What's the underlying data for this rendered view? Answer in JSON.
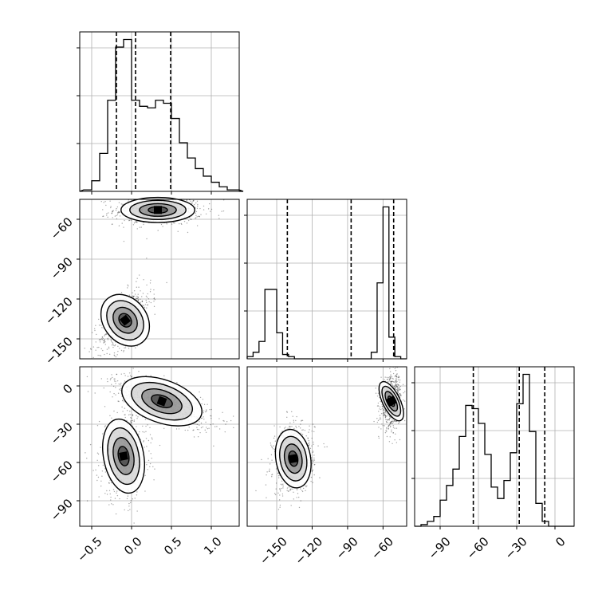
{
  "chart_data": {
    "type": "corner",
    "grid": true,
    "colors": {
      "line": "#000000",
      "grid": "#b0b0b0",
      "density": "#000000"
    },
    "diagonal": [
      {
        "param_index": 0,
        "xlim": [
          -0.65,
          1.35
        ],
        "bin_width": 0.1,
        "bins_start": -0.6,
        "counts": [
          1,
          7,
          25,
          60,
          95,
          100,
          60,
          56,
          55,
          60,
          58,
          48,
          32,
          22,
          15,
          10,
          6,
          3,
          1,
          1,
          0
        ],
        "quantiles": [
          -0.19,
          0.05,
          0.49
        ],
        "x_ticks": [
          -0.5,
          0.0,
          0.5,
          1.0
        ],
        "x_tick_labels": [
          "−0.5",
          "0.0",
          "0.5",
          "1.0"
        ]
      },
      {
        "param_index": 1,
        "xlim": [
          -175,
          -40
        ],
        "bin_width": 5,
        "bins_start": -175,
        "counts": [
          1,
          3,
          8,
          32,
          32,
          12,
          2,
          1,
          0,
          0,
          0,
          0,
          0,
          0,
          0,
          0,
          0,
          0,
          0,
          0,
          0,
          3,
          35,
          70,
          10,
          1,
          0
        ],
        "quantiles": [
          -141,
          -87,
          -51
        ],
        "x_ticks": [
          -150,
          -120,
          -90,
          -60
        ],
        "x_tick_labels": [
          "−150",
          "−120",
          "−90",
          "−60"
        ]
      },
      {
        "param_index": 2,
        "xlim": [
          -110,
          15
        ],
        "bin_width": 5,
        "bins_start": -110,
        "counts": [
          0,
          1,
          3,
          6,
          16,
          25,
          35,
          55,
          74,
          72,
          63,
          44,
          24,
          17,
          28,
          45,
          75,
          93,
          58,
          14,
          3,
          0,
          0
        ],
        "quantiles": [
          -64,
          -28,
          -8
        ],
        "x_ticks": [
          -90,
          -60,
          -30,
          0
        ],
        "x_tick_labels": [
          "−90",
          "−60",
          "−30",
          "0"
        ]
      }
    ],
    "pairs": [
      {
        "x_param": 0,
        "y_param": 1,
        "xlim": [
          -0.65,
          1.35
        ],
        "ylim": [
          -165,
          -45
        ],
        "y_ticks": [
          -60,
          -90,
          -120,
          -150
        ],
        "y_tick_labels": [
          "−60",
          "−90",
          "−120",
          "−150"
        ],
        "clusters": [
          {
            "cx": 0.33,
            "cy": -53,
            "sx": 0.22,
            "sy": 4.5,
            "rho": 0.0,
            "weight": 0.55
          },
          {
            "cx": -0.08,
            "cy": -136,
            "sx": 0.13,
            "sy": 10,
            "rho": 0.6,
            "weight": 0.45
          }
        ]
      },
      {
        "x_param": 0,
        "y_param": 2,
        "xlim": [
          -0.65,
          1.35
        ],
        "ylim": [
          -110,
          15
        ],
        "y_ticks": [
          0,
          -30,
          -60,
          -90
        ],
        "y_tick_labels": [
          "0",
          "−30",
          "−60",
          "−90"
        ],
        "clusters": [
          {
            "cx": 0.38,
            "cy": -12,
            "sx": 0.25,
            "sy": 8,
            "rho": -0.7,
            "weight": 0.55
          },
          {
            "cx": -0.1,
            "cy": -55,
            "sx": 0.12,
            "sy": 14,
            "rho": 0.1,
            "weight": 0.45
          }
        ]
      },
      {
        "x_param": 1,
        "y_param": 2,
        "xlim": [
          -175,
          -40
        ],
        "ylim": [
          -110,
          15
        ],
        "clusters": [
          {
            "cx": -53,
            "cy": -12,
            "sx": 3.5,
            "sy": 8,
            "rho": 0.2,
            "weight": 0.5
          },
          {
            "cx": -136,
            "cy": -57,
            "sx": 7,
            "sy": 11,
            "rho": 0.1,
            "weight": 0.5
          }
        ]
      }
    ]
  }
}
